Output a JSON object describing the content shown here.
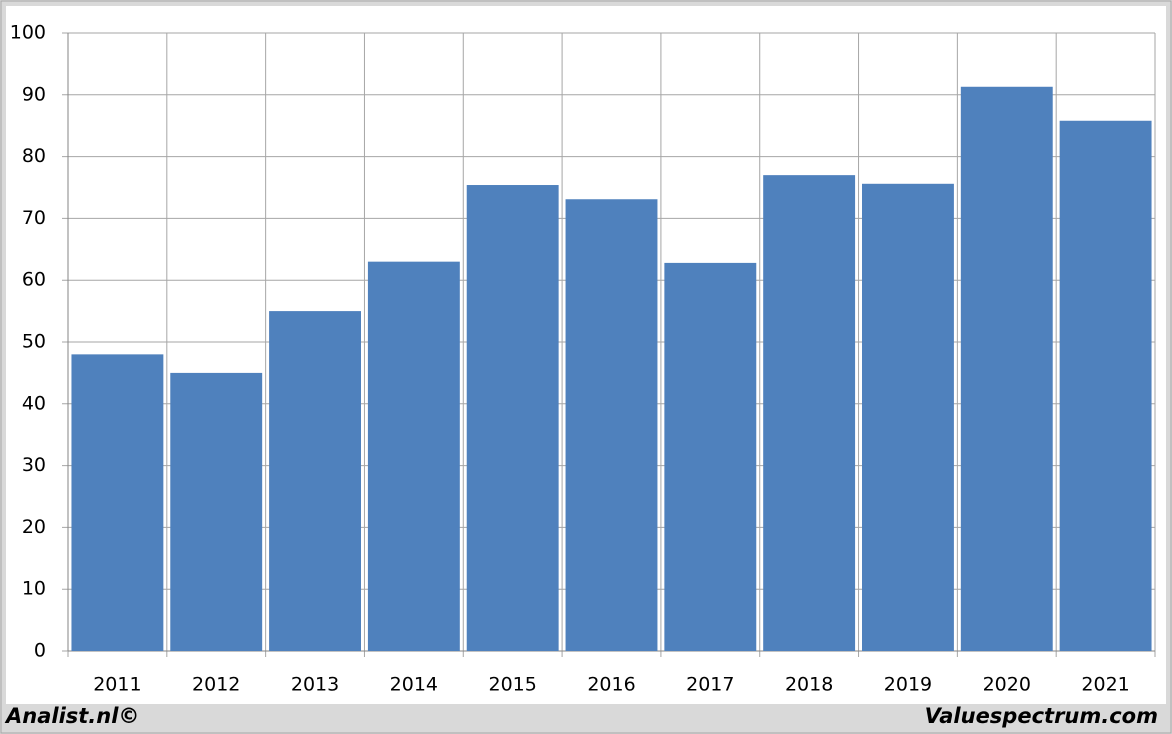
{
  "chart_data": {
    "type": "bar",
    "categories": [
      "2011",
      "2012",
      "2013",
      "2014",
      "2015",
      "2016",
      "2017",
      "2018",
      "2019",
      "2020",
      "2021"
    ],
    "values": [
      48,
      45,
      55,
      63,
      75.4,
      73.1,
      62.8,
      77,
      75.6,
      91.3,
      85.8
    ],
    "color": "#4f81bd",
    "ylim": [
      0,
      100
    ],
    "yticks": [
      0,
      10,
      20,
      30,
      40,
      50,
      60,
      70,
      80,
      90,
      100
    ],
    "grid": true
  },
  "footer": {
    "left": "Analist.nl©",
    "right": "Valuespectrum.com"
  }
}
